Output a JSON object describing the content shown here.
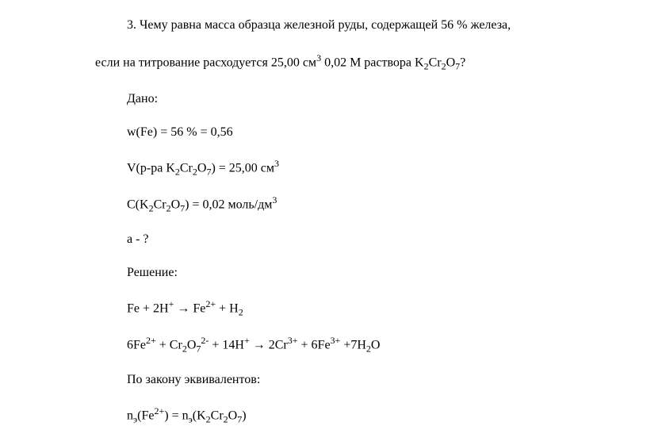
{
  "problem": {
    "number": "3.",
    "text_line1": "Чему равна масса образца железной руды, содержащей 56 % железа,",
    "text_line2": "если на титрование расходуется 25,00 см",
    "text_line2_sup": "3",
    "text_line2_cont": " 0,02 М раствора K",
    "k2cr2o7_sub1": "2",
    "k2cr2o7_mid": "Cr",
    "k2cr2o7_sub2": "2",
    "k2cr2o7_o": "O",
    "k2cr2o7_sub3": "7",
    "text_line2_end": "?"
  },
  "given": {
    "label": "Дано:",
    "line1_pre": "w(Fe) = 56 % = 0,56",
    "line2_pre": "V(р-ра K",
    "line2_post": ") = 25,00 см",
    "line2_sup": "3",
    "line3_pre": "C(K",
    "line3_post": ") = 0,02 моль/дм",
    "line3_sup": "3",
    "line4": "a - ?"
  },
  "solution": {
    "label": "Решение:",
    "eq1_pre": "Fe + 2H",
    "eq1_sup1": "+",
    "eq1_arrow": " → Fe",
    "eq1_sup2": "2+",
    "eq1_post": " + H",
    "eq1_sub": "2",
    "eq2_pre": "6Fe",
    "eq2_sup1": "2+",
    "eq2_cr": " + Cr",
    "eq2_sub1": "2",
    "eq2_o": "O",
    "eq2_sub2": "7",
    "eq2_sup2": "2-",
    "eq2_h": " + 14H",
    "eq2_sup3": "+",
    "eq2_arrow": " → 2Cr",
    "eq2_sup4": "3+",
    "eq2_fe": " + 6Fe",
    "eq2_sup5": "3+",
    "eq2_post": " +7H",
    "eq2_sub3": "2",
    "eq2_o2": "O",
    "law": "По закону эквивалентов:",
    "eq3_pre": "n",
    "eq3_sub1": "э",
    "eq3_fe": "(Fe",
    "eq3_sup1": "2+",
    "eq3_eq": ") = n",
    "eq3_sub2": "э",
    "eq3_k": "(K",
    "eq3_post": ")"
  },
  "style": {
    "font_family": "Times New Roman",
    "font_size_pt": 12,
    "text_color": "#000000",
    "background_color": "#ffffff"
  }
}
